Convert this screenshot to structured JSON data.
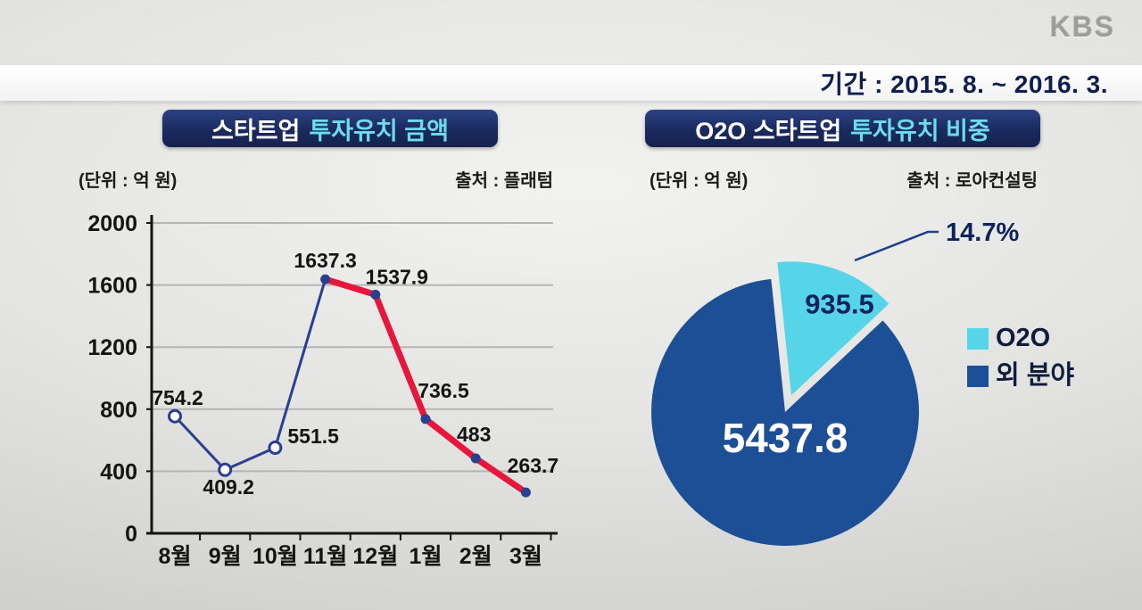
{
  "branding": {
    "logo_text": "KBS"
  },
  "header": {
    "period_label": "기간 : 2015. 8. ~ 2016. 3."
  },
  "left_panel": {
    "title_part1": "스타트업",
    "title_part2": "투자유치 금액",
    "unit_label": "(단위 : 억 원)",
    "source_label": "출처 : 플래텀"
  },
  "right_panel": {
    "title_part1": "O2O 스타트업",
    "title_part2": "투자유치 비중",
    "unit_label": "(단위 : 억 원)",
    "source_label": "출처 : 로아컨설팅"
  },
  "colors": {
    "badge_navy": "#1a2a5e",
    "title_cyan": "#6fdcec",
    "line_blue": "#2a3f8f",
    "highlight_red": "#e6173b",
    "pie_cyan": "#57d5e8",
    "pie_navy": "#1c4f95",
    "text_navy": "#0e1f4f",
    "grid_gray": "#b5b5b5"
  },
  "chart_data": [
    {
      "type": "line",
      "title": "스타트업 투자유치 금액",
      "unit": "억 원",
      "source": "플래텀",
      "categories": [
        "8월",
        "9월",
        "10월",
        "11월",
        "12월",
        "1월",
        "2월",
        "3월"
      ],
      "values": [
        754.2,
        409.2,
        551.5,
        1637.3,
        1537.9,
        736.5,
        483,
        263.7
      ],
      "value_labels": [
        "754.2",
        "409.2",
        "551.5",
        "1637.3",
        "1537.9",
        "736.5",
        "483",
        "263.7"
      ],
      "ylim": [
        0,
        2000
      ],
      "yticks": [
        0,
        400,
        800,
        1200,
        1600,
        2000
      ],
      "highlight_from_index": 3,
      "grid": true,
      "legend": "none",
      "line_color": "#2a3f8f",
      "highlight_color": "#e6173b"
    },
    {
      "type": "pie",
      "title": "O2O 스타트업 투자유치 비중",
      "unit": "억 원",
      "source": "로아컨설팅",
      "slices": [
        {
          "label": "O2O",
          "value": 935.5,
          "display": "935.5",
          "color": "#57d5e8",
          "percent_label": "14.7%"
        },
        {
          "label": "외 분야",
          "value": 5437.8,
          "display": "5437.8",
          "color": "#1c4f95"
        }
      ],
      "callout_label": "14.7%",
      "legend_position": "right"
    }
  ]
}
